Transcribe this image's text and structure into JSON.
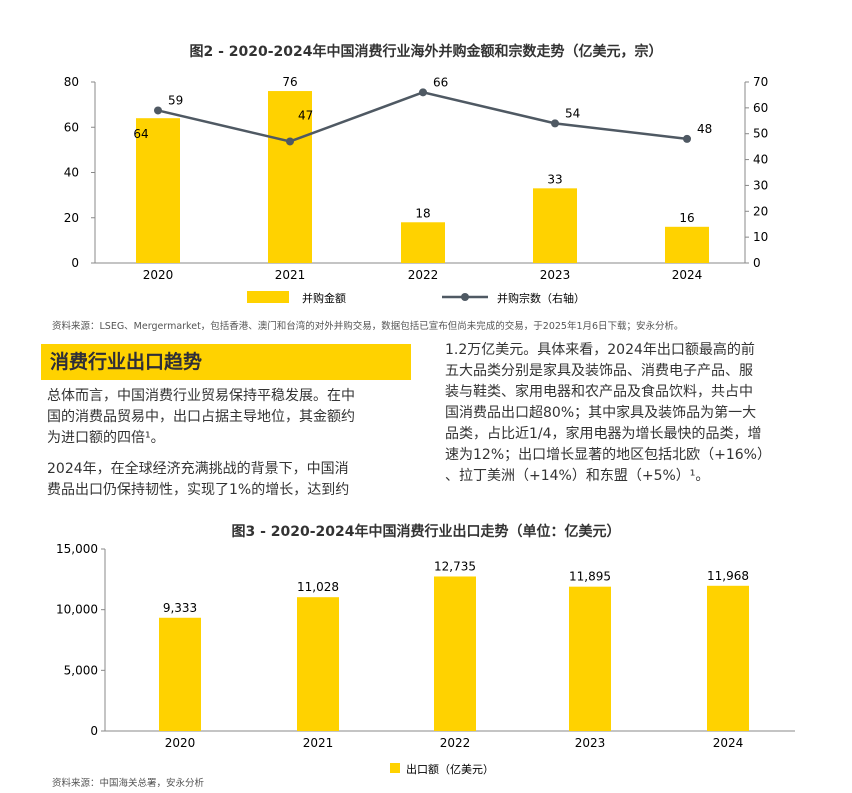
{
  "chart_data": [
    {
      "type": "bar+line",
      "title": "图2 - 2020-2024年中国消费行业海外并购金额和宗数走势（亿美元，宗）",
      "categories": [
        "2020",
        "2021",
        "2022",
        "2023",
        "2024"
      ],
      "series": [
        {
          "name": "并购金额",
          "type": "bar",
          "axis": "left",
          "values": [
            64,
            76,
            18,
            33,
            16
          ]
        },
        {
          "name": "并购宗数（右轴）",
          "type": "line",
          "axis": "right",
          "values": [
            59,
            47,
            66,
            54,
            48
          ]
        }
      ],
      "ylim_left": [
        0,
        80
      ],
      "yticks_left": [
        "0",
        "20",
        "40",
        "60",
        "80"
      ],
      "ylim_right": [
        0,
        70
      ],
      "yticks_right": [
        "0",
        "10",
        "20",
        "30",
        "40",
        "50",
        "60",
        "70"
      ],
      "legend": "bottom",
      "grid": false,
      "source": "资料来源：LSEG、Mergermarket，包括香港、澳门和台湾的对外并购交易，数据包括已宣布但尚未完成的交易，于2025年1月6日下载；安永分析。"
    },
    {
      "type": "bar",
      "title": "图3 - 2020-2024年中国消费行业出口走势（单位：亿美元）",
      "categories": [
        "2020",
        "2021",
        "2022",
        "2023",
        "2024"
      ],
      "series": [
        {
          "name": "出口额（亿美元）",
          "values": [
            9333,
            11028,
            12735,
            11895,
            11968
          ]
        }
      ],
      "value_labels": [
        "9,333",
        "11,028",
        "12,735",
        "11,895",
        "11,968"
      ],
      "ylim": [
        0,
        15000
      ],
      "yticks": [
        "0",
        "5,000",
        "10,000",
        "15,000"
      ],
      "legend": "bottom",
      "grid": false,
      "source": "资料来源：中国海关总署，安永分析"
    }
  ],
  "colors": {
    "bar": "#ffd200",
    "line": "#4f5963",
    "axis": "#888888"
  },
  "section": {
    "heading": "消费行业出口趋势",
    "left_paragraphs": [
      [
        "总体而言，中国消费行业贸易保持平稳发展。在中",
        "国的消费品贸易中，出口占据主导地位，其金额约",
        "为进口额的四倍¹。"
      ],
      [
        "2024年，在全球经济充满挑战的背景下，中国消",
        "费品出口仍保持韧性，实现了1%的增长，达到约"
      ]
    ],
    "right_paragraph": [
      "1.2万亿美元。具体来看，2024年出口额最高的前",
      "五大品类分别是家具及装饰品、消费电子产品、服",
      "装与鞋类、家用电器和农产品及食品饮料，共占中",
      "国消费品出口超80%；其中家具及装饰品为第一大",
      "品类，占比近1/4，家用电器为增长最快的品类，增",
      "速为12%；出口增长显著的地区包括北欧（+16%）",
      "、拉丁美洲（+14%）和东盟（+5%）¹。"
    ]
  }
}
